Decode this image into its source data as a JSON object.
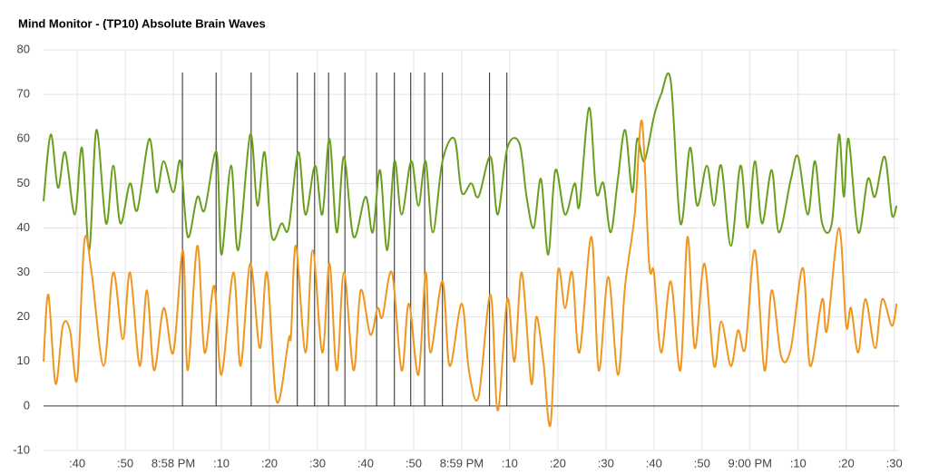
{
  "chart_data": {
    "type": "line",
    "title": "Mind Monitor - (TP10) Absolute Brain Waves",
    "ylim": [
      -10,
      80
    ],
    "yticks": [
      -10,
      0,
      10,
      20,
      30,
      40,
      50,
      60,
      70,
      80
    ],
    "xlim": [
      -27,
      151
    ],
    "xticks": [
      {
        "value": -20,
        "label": ":40"
      },
      {
        "value": -10,
        "label": ":50"
      },
      {
        "value": 0,
        "label": "8:58 PM"
      },
      {
        "value": 10,
        "label": ":10"
      },
      {
        "value": 20,
        "label": ":20"
      },
      {
        "value": 30,
        "label": ":30"
      },
      {
        "value": 40,
        "label": ":40"
      },
      {
        "value": 50,
        "label": ":50"
      },
      {
        "value": 60,
        "label": "8:59 PM"
      },
      {
        "value": 70,
        "label": ":10"
      },
      {
        "value": 80,
        "label": ":20"
      },
      {
        "value": 90,
        "label": ":30"
      },
      {
        "value": 100,
        "label": ":40"
      },
      {
        "value": 110,
        "label": ":50"
      },
      {
        "value": 120,
        "label": "9:00 PM"
      },
      {
        "value": 130,
        "label": ":10"
      },
      {
        "value": 140,
        "label": ":20"
      },
      {
        "value": 150,
        "label": ":30"
      }
    ],
    "grid": true,
    "markers": [
      1.9,
      8.9,
      16.2,
      25.8,
      29.4,
      32.3,
      35.7,
      42.3,
      46,
      49.4,
      52.3,
      56,
      65.8,
      69.4
    ],
    "series": [
      {
        "color": "#6a9f1e",
        "x": [
          -27,
          -25.5,
          -24,
          -22.5,
          -20.5,
          -19,
          -17.5,
          -16,
          -14,
          -12.5,
          -11,
          -9,
          -7.5,
          -5,
          -3.5,
          -2,
          0,
          1.5,
          3,
          5,
          6.5,
          9,
          10,
          12,
          13.5,
          16,
          17.5,
          19,
          20.5,
          22.5,
          24,
          26,
          27.5,
          29.5,
          31,
          32.5,
          34,
          35.5,
          37.5,
          40,
          41.5,
          43,
          44.5,
          46,
          47.5,
          49.5,
          51,
          52.5,
          54,
          56,
          58.5,
          60,
          62,
          63.5,
          66,
          67.5,
          69.5,
          72,
          73.5,
          75,
          76.5,
          78,
          79.5,
          81.5,
          83.5,
          84.5,
          86.5,
          88,
          89.5,
          91,
          92.5,
          94,
          95.5,
          96.5,
          98,
          100,
          101.5,
          103.5,
          105.5,
          107.5,
          109,
          111,
          112.5,
          114,
          116,
          118,
          119.5,
          121,
          122.5,
          124.5,
          126,
          128.5,
          130,
          132,
          133.5,
          135,
          137,
          138.5,
          139.5,
          140.5,
          142.5,
          144.5,
          146,
          148,
          149.5,
          150.5
        ],
        "values": [
          46,
          61,
          49,
          57,
          43,
          58,
          35,
          62,
          41,
          54,
          41,
          50,
          44,
          60,
          48,
          55,
          48,
          55,
          38,
          47,
          44,
          57,
          34,
          54,
          35,
          61,
          45,
          57,
          38,
          41,
          40,
          57,
          43,
          54,
          43,
          60,
          39,
          56,
          38,
          47,
          39,
          53,
          35,
          55,
          43,
          55,
          45,
          55,
          39,
          55,
          60,
          48,
          50,
          47,
          56,
          43,
          58,
          59,
          47,
          40,
          51,
          34,
          53,
          43,
          50,
          45,
          67,
          48,
          50,
          39,
          51,
          62,
          48,
          60,
          55,
          65,
          70,
          73,
          41,
          58,
          45,
          54,
          45,
          54,
          36,
          54,
          40,
          55,
          41,
          53,
          39,
          51,
          56,
          43,
          55,
          41,
          41,
          61,
          47,
          60,
          39,
          51,
          47,
          56,
          43,
          45
        ]
      },
      {
        "color": "#f0961e",
        "x": [
          -27,
          -26,
          -24.5,
          -23,
          -21.5,
          -20,
          -18.5,
          -17,
          -14.5,
          -12.5,
          -10.5,
          -9,
          -7,
          -5.5,
          -4,
          -2,
          0,
          2,
          3,
          5,
          6.5,
          8.5,
          10,
          12.5,
          14,
          16,
          18,
          19.5,
          21.5,
          24,
          24.5,
          25.5,
          27.5,
          29,
          31,
          32.5,
          34,
          35.5,
          37.5,
          39,
          41,
          42.5,
          43.5,
          45.5,
          47.5,
          49,
          51,
          52.5,
          53.5,
          56,
          57.5,
          60,
          61.5,
          63.5,
          66,
          67.5,
          69.5,
          71,
          72.5,
          74.5,
          75.5,
          77,
          78.5,
          80,
          81.5,
          83,
          84.5,
          87,
          88.5,
          90.5,
          92.5,
          94,
          96,
          97.5,
          99,
          100,
          101.5,
          103.5,
          105.5,
          107,
          108.5,
          110.5,
          112.5,
          114,
          116,
          117.5,
          119,
          121,
          123,
          124.5,
          126.5,
          128.5,
          131,
          132.5,
          135,
          136,
          138.5,
          140,
          141,
          142.5,
          144,
          146,
          147.5,
          149.5,
          150.5
        ],
        "values": [
          10,
          25,
          5,
          18,
          17,
          6,
          37,
          30,
          9,
          30,
          15,
          30,
          9,
          26,
          8,
          22,
          12,
          35,
          8,
          36,
          12,
          27,
          7,
          30,
          9,
          32,
          13,
          30,
          1,
          15,
          16,
          36,
          12,
          35,
          12,
          32,
          8,
          30,
          8,
          26,
          16,
          22,
          20,
          30,
          8,
          23,
          7,
          30,
          12,
          28,
          9,
          23,
          8,
          2,
          25,
          -1,
          24,
          10,
          30,
          5,
          20,
          10,
          -4,
          30,
          22,
          30,
          12,
          38,
          8,
          29,
          7,
          27,
          43,
          64,
          32,
          30,
          12,
          28,
          8,
          38,
          13,
          32,
          9,
          19,
          9,
          17,
          13,
          35,
          8,
          26,
          11,
          13,
          31,
          9,
          24,
          17,
          40,
          18,
          22,
          12,
          24,
          13,
          24,
          18,
          23
        ]
      }
    ]
  }
}
